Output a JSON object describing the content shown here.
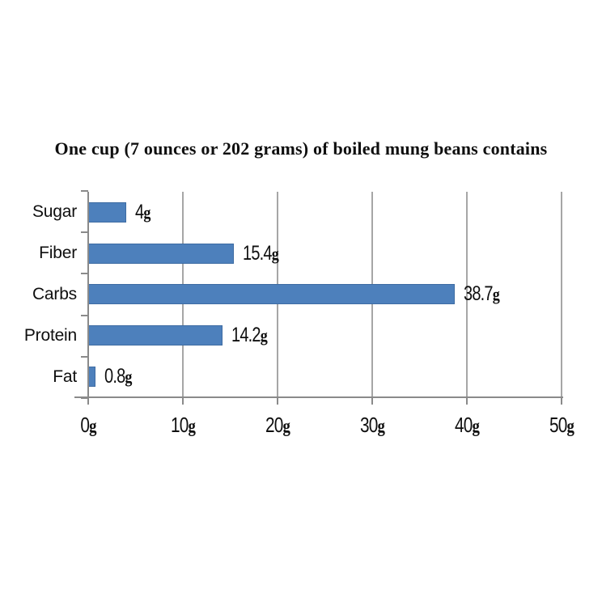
{
  "title": "One cup (7 ounces or 202 grams) of boiled mung beans contains",
  "chart_data": {
    "type": "bar",
    "orientation": "horizontal",
    "title": "One cup (7 ounces or 202 grams) of boiled mung beans contains",
    "categories": [
      "Sugar",
      "Fiber",
      "Carbs",
      "Protein",
      "Fat"
    ],
    "values": [
      4,
      15.4,
      38.7,
      14.2,
      0.8
    ],
    "data_labels": [
      "4g",
      "15.4g",
      "38.7g",
      "14.2g",
      "0.8g"
    ],
    "unit": "g",
    "xlim": [
      0,
      50
    ],
    "x_ticks": [
      {
        "label": "0g",
        "value": 0
      },
      {
        "label": "10g",
        "value": 10
      },
      {
        "label": "20g",
        "value": 20
      },
      {
        "label": "30g",
        "value": 30
      },
      {
        "label": "40g",
        "value": 40
      },
      {
        "label": "50g",
        "value": 50
      }
    ],
    "grid": true,
    "legend": false,
    "xlabel": "",
    "ylabel": "",
    "colors": {
      "bar": "#4d80bc",
      "bar_border": "#3e6ca3",
      "gridline": "#a6a6a6",
      "axis": "#8a8a8a",
      "text": "#0f0f0f"
    }
  }
}
